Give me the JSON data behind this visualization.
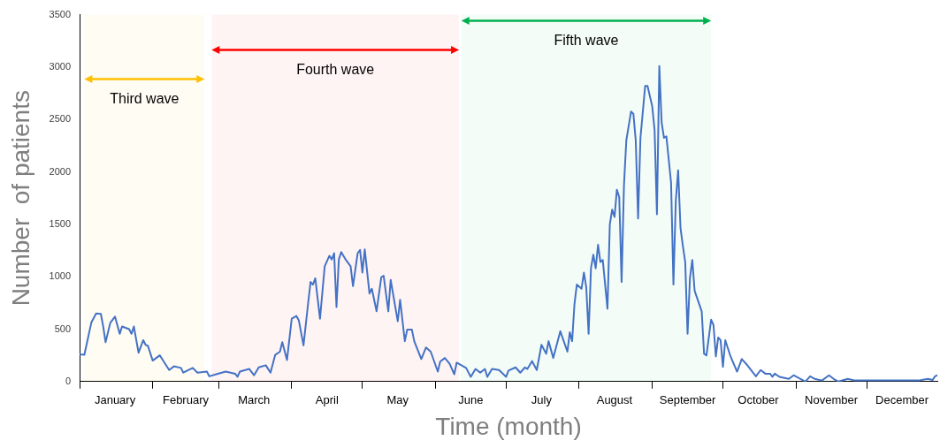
{
  "chart_data": {
    "type": "line",
    "xlabel": "Time (month)",
    "ylabel": "Number  of patients",
    "x": [
      "--01-01",
      "--01-03",
      "--01-06",
      "--01-08",
      "--01-10",
      "--01-11",
      "--01-12",
      "--01-14",
      "--01-15",
      "--01-16",
      "--01-18",
      "--01-19",
      "--01-22",
      "--01-23",
      "--01-24",
      "--01-26",
      "--01-28",
      "--01-29",
      "--01-30",
      "--02-01",
      "--02-04",
      "--02-05",
      "--02-08",
      "--02-10",
      "--02-13",
      "--02-14",
      "--02-18",
      "--02-20",
      "--02-24",
      "--02-25",
      "--02-28",
      "--03-04",
      "--03-08",
      "--03-09",
      "--03-10",
      "--03-14",
      "--03-16",
      "--03-18",
      "--03-21",
      "--03-23",
      "--03-25",
      "--03-27",
      "--03-28",
      "--03-30",
      "--04-01",
      "--04-03",
      "--04-04",
      "--04-06",
      "--04-08",
      "--04-09",
      "--04-10",
      "--04-11",
      "--04-13",
      "--04-15",
      "--04-17",
      "--04-18",
      "--04-19",
      "--04-20",
      "--04-21",
      "--04-22",
      "--04-24",
      "--04-26",
      "--04-27",
      "--04-29",
      "--04-30",
      "--05-01",
      "--05-02",
      "--05-04",
      "--05-05",
      "--05-07",
      "--05-09",
      "--05-10",
      "--05-12",
      "--05-13",
      "--05-16",
      "--05-17",
      "--05-19",
      "--05-20",
      "--05-22",
      "--05-23",
      "--05-26",
      "--05-28",
      "--05-30",
      "--06-02",
      "--06-03",
      "--06-05",
      "--06-07",
      "--06-09",
      "--06-10",
      "--06-14",
      "--06-16",
      "--06-18",
      "--06-20",
      "--06-22",
      "--06-23",
      "--06-25",
      "--06-28",
      "--07-01",
      "--07-02",
      "--07-05",
      "--07-07",
      "--07-09",
      "--07-10",
      "--07-12",
      "--07-14",
      "--07-16",
      "--07-18",
      "--07-19",
      "--07-21",
      "--07-24",
      "--07-27",
      "--07-28",
      "--07-29",
      "--07-30",
      "--07-31",
      "--08-02",
      "--08-03",
      "--08-04",
      "--08-05",
      "--08-06",
      "--08-07",
      "--08-08",
      "--08-09",
      "--08-10",
      "--08-11",
      "--08-13",
      "--08-14",
      "--08-15",
      "--08-16",
      "--08-17",
      "--08-18",
      "--08-19",
      "--08-20",
      "--08-21",
      "--08-23",
      "--08-24",
      "--08-25",
      "--08-26",
      "--08-27",
      "--08-29",
      "--08-30",
      "--09-01",
      "--09-02",
      "--09-03",
      "--09-04",
      "--09-05",
      "--09-06",
      "--09-07",
      "--09-09",
      "--09-10",
      "--09-11",
      "--09-12",
      "--09-13",
      "--09-14",
      "--09-15",
      "--09-16",
      "--09-17",
      "--09-18",
      "--09-19",
      "--09-22",
      "--09-23",
      "--09-24",
      "--09-26",
      "--09-27",
      "--09-28",
      "--09-29",
      "--09-30",
      "--10-01",
      "--10-02",
      "--10-04",
      "--10-05",
      "--10-07",
      "--10-09",
      "--10-11",
      "--10-15",
      "--10-17",
      "--10-19",
      "--10-21",
      "--10-22",
      "--10-23",
      "--10-25",
      "--10-29",
      "--10-31",
      "--11-05",
      "--11-07",
      "--11-09",
      "--11-12",
      "--11-15",
      "--11-17",
      "--11-19",
      "--11-23",
      "--11-26",
      "--12-01",
      "--12-06",
      "--12-11",
      "--12-16",
      "--12-23",
      "--12-27",
      "--12-29",
      "--12-30",
      "--12-31"
    ],
    "series": [
      {
        "color": "#4472c4",
        "values": [
          260,
          255,
          566,
          650,
          645,
          525,
          375,
          560,
          590,
          620,
          455,
          525,
          500,
          455,
          525,
          275,
          395,
          350,
          340,
          200,
          250,
          215,
          110,
          145,
          130,
          85,
          130,
          85,
          95,
          50,
          70,
          95,
          75,
          45,
          95,
          120,
          60,
          135,
          155,
          85,
          255,
          285,
          375,
          205,
          600,
          625,
          585,
          345,
          755,
          950,
          925,
          985,
          600,
          1100,
          1200,
          1165,
          1225,
          710,
          1165,
          1235,
          1160,
          1100,
          910,
          1225,
          1255,
          1040,
          1260,
          840,
          885,
          670,
          995,
          1010,
          670,
          970,
          575,
          780,
          385,
          495,
          495,
          385,
          215,
          325,
          285,
          95,
          190,
          225,
          170,
          70,
          180,
          130,
          45,
          120,
          85,
          120,
          45,
          120,
          110,
          45,
          105,
          135,
          85,
          135,
          120,
          195,
          110,
          350,
          265,
          385,
          225,
          480,
          285,
          470,
          385,
          740,
          925,
          885,
          1040,
          900,
          455,
          1080,
          1210,
          1080,
          1305,
          1140,
          1160,
          695,
          1500,
          1640,
          1570,
          1830,
          1760,
          950,
          1870,
          2300,
          2575,
          2555,
          2300,
          1555,
          2325,
          2820,
          2820,
          2625,
          2400,
          1595,
          3010,
          2470,
          2325,
          2340,
          1895,
          925,
          1725,
          2015,
          1465,
          1295,
          1140,
          455,
          985,
          1160,
          865,
          670,
          265,
          250,
          590,
          540,
          240,
          420,
          395,
          140,
          395,
          255,
          200,
          95,
          215,
          165,
          50,
          110,
          75,
          75,
          45,
          75,
          45,
          25,
          60,
          0,
          50,
          25,
          10,
          60,
          25,
          0,
          25,
          10,
          10,
          10,
          10,
          10,
          10,
          25,
          15,
          50,
          60
        ]
      }
    ],
    "xlim": [
      "--01-01",
      "--12-31"
    ],
    "xticks": [
      {
        "value": "--01-01",
        "label": null
      },
      {
        "value": "--01-16",
        "label": "January"
      },
      {
        "value": "--02-01",
        "label": null
      },
      {
        "value": "--02-15",
        "label": "February"
      },
      {
        "value": "--03-01",
        "label": null
      },
      {
        "value": "--03-16",
        "label": "March"
      },
      {
        "value": "--04-01",
        "label": null
      },
      {
        "value": "--04-16",
        "label": "April"
      },
      {
        "value": "--05-01",
        "label": null
      },
      {
        "value": "--05-16",
        "label": "May"
      },
      {
        "value": "--06-01",
        "label": null
      },
      {
        "value": "--06-16",
        "label": "June"
      },
      {
        "value": "--07-01",
        "label": null
      },
      {
        "value": "--07-16",
        "label": "July"
      },
      {
        "value": "--08-01",
        "label": null
      },
      {
        "value": "--08-16",
        "label": "August"
      },
      {
        "value": "--09-01",
        "label": null
      },
      {
        "value": "--09-16",
        "label": "September"
      },
      {
        "value": "--10-01",
        "label": null
      },
      {
        "value": "--10-16",
        "label": "October"
      },
      {
        "value": "--11-01",
        "label": null
      },
      {
        "value": "--11-16",
        "label": "November"
      },
      {
        "value": "--12-01",
        "label": null
      },
      {
        "value": "--12-16",
        "label": "December"
      }
    ],
    "ylim": [
      0,
      3500
    ],
    "yticks": [
      0,
      500,
      1000,
      1500,
      2000,
      2500,
      3000,
      3500
    ],
    "bands": [
      {
        "axis": "x",
        "from": "--01-03",
        "to": "--02-23",
        "label": "Third wave",
        "color": "#ffc000"
      },
      {
        "axis": "x",
        "from": "--02-26",
        "to": "--06-11",
        "label": "Fourth wave",
        "color": "#ff0000"
      },
      {
        "axis": "x",
        "from": "--06-12",
        "to": "--09-26",
        "label": "Fifth wave",
        "color": "#00b050"
      }
    ],
    "grid": false,
    "legend": false,
    "marker": "none",
    "line_style": "solid"
  }
}
